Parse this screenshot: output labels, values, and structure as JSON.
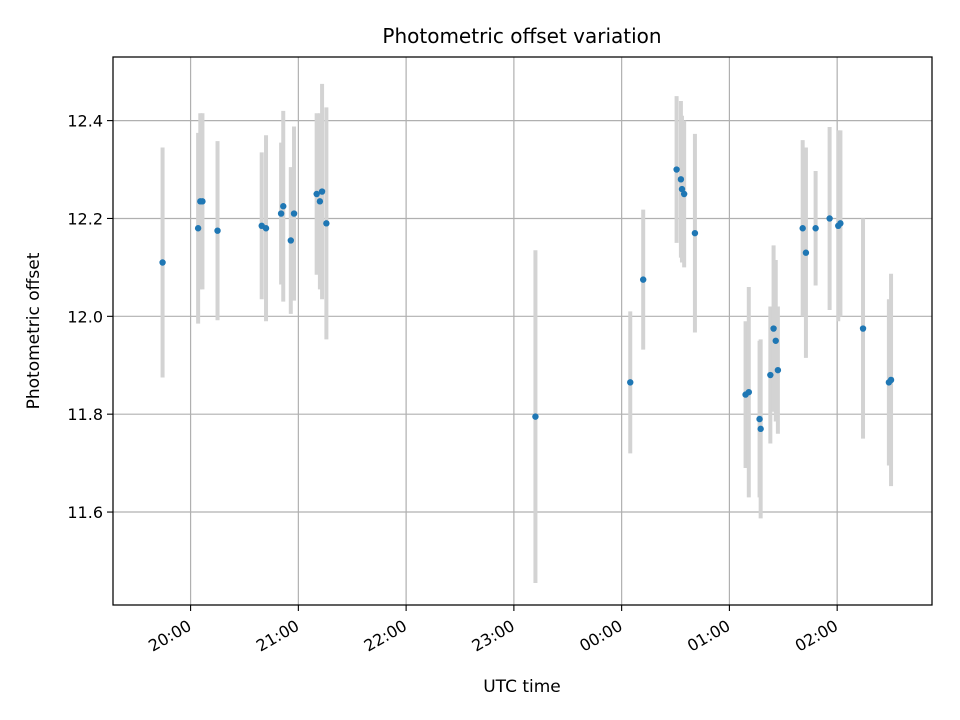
{
  "chart_data": {
    "type": "scatter",
    "title": "Photometric offset variation",
    "xlabel": "UTC time",
    "ylabel": "Photometric offset",
    "grid": true,
    "x_unit": "hours",
    "xlim": [
      -0.72,
      6.88
    ],
    "ylim": [
      11.41,
      12.53
    ],
    "x_ticks": [
      {
        "value": 0,
        "label": "20:00"
      },
      {
        "value": 1,
        "label": "21:00"
      },
      {
        "value": 2,
        "label": "22:00"
      },
      {
        "value": 3,
        "label": "23:00"
      },
      {
        "value": 4,
        "label": "00:00"
      },
      {
        "value": 5,
        "label": "01:00"
      },
      {
        "value": 6,
        "label": "02:00"
      }
    ],
    "y_ticks": [
      {
        "value": 11.6,
        "label": "11.6"
      },
      {
        "value": 11.8,
        "label": "11.8"
      },
      {
        "value": 12.0,
        "label": "12.0"
      },
      {
        "value": 12.2,
        "label": "12.2"
      },
      {
        "value": 12.4,
        "label": "12.4"
      }
    ],
    "colors": {
      "point": "#1f77b4",
      "errorbar": "#d3d3d3",
      "grid": "#b0b0b0"
    },
    "points": [
      {
        "x": -0.26,
        "y": 12.11,
        "err": 0.235
      },
      {
        "x": 0.07,
        "y": 12.18,
        "err": 0.195
      },
      {
        "x": 0.09,
        "y": 12.235,
        "err": 0.18
      },
      {
        "x": 0.11,
        "y": 12.235,
        "err": 0.18
      },
      {
        "x": 0.25,
        "y": 12.175,
        "err": 0.183
      },
      {
        "x": 0.66,
        "y": 12.185,
        "err": 0.15
      },
      {
        "x": 0.7,
        "y": 12.18,
        "err": 0.19
      },
      {
        "x": 0.84,
        "y": 12.21,
        "err": 0.145
      },
      {
        "x": 0.86,
        "y": 12.225,
        "err": 0.195
      },
      {
        "x": 0.93,
        "y": 12.155,
        "err": 0.15
      },
      {
        "x": 0.96,
        "y": 12.21,
        "err": 0.178
      },
      {
        "x": 1.17,
        "y": 12.25,
        "err": 0.165
      },
      {
        "x": 1.2,
        "y": 12.235,
        "err": 0.18
      },
      {
        "x": 1.22,
        "y": 12.255,
        "err": 0.22
      },
      {
        "x": 1.26,
        "y": 12.19,
        "err": 0.237
      },
      {
        "x": 3.2,
        "y": 11.795,
        "err": 0.34
      },
      {
        "x": 4.08,
        "y": 11.865,
        "err": 0.145
      },
      {
        "x": 4.2,
        "y": 12.075,
        "err": 0.143
      },
      {
        "x": 4.51,
        "y": 12.3,
        "err": 0.15
      },
      {
        "x": 4.55,
        "y": 12.28,
        "err": 0.16
      },
      {
        "x": 4.56,
        "y": 12.26,
        "err": 0.15
      },
      {
        "x": 4.58,
        "y": 12.25,
        "err": 0.15
      },
      {
        "x": 4.68,
        "y": 12.17,
        "err": 0.203
      },
      {
        "x": 5.15,
        "y": 11.84,
        "err": 0.15
      },
      {
        "x": 5.18,
        "y": 11.845,
        "err": 0.215
      },
      {
        "x": 5.28,
        "y": 11.79,
        "err": 0.16
      },
      {
        "x": 5.29,
        "y": 11.77,
        "err": 0.183
      },
      {
        "x": 5.38,
        "y": 11.88,
        "err": 0.14
      },
      {
        "x": 5.41,
        "y": 11.975,
        "err": 0.17
      },
      {
        "x": 5.43,
        "y": 11.95,
        "err": 0.165
      },
      {
        "x": 5.45,
        "y": 11.89,
        "err": 0.13
      },
      {
        "x": 5.68,
        "y": 12.18,
        "err": 0.18
      },
      {
        "x": 5.71,
        "y": 12.13,
        "err": 0.215
      },
      {
        "x": 5.8,
        "y": 12.18,
        "err": 0.117
      },
      {
        "x": 5.93,
        "y": 12.2,
        "err": 0.187
      },
      {
        "x": 6.01,
        "y": 12.185,
        "err": 0.195
      },
      {
        "x": 6.03,
        "y": 12.19,
        "err": 0.19
      },
      {
        "x": 6.24,
        "y": 11.975,
        "err": 0.225
      },
      {
        "x": 6.48,
        "y": 11.865,
        "err": 0.17
      },
      {
        "x": 6.5,
        "y": 11.87,
        "err": 0.217
      }
    ]
  }
}
